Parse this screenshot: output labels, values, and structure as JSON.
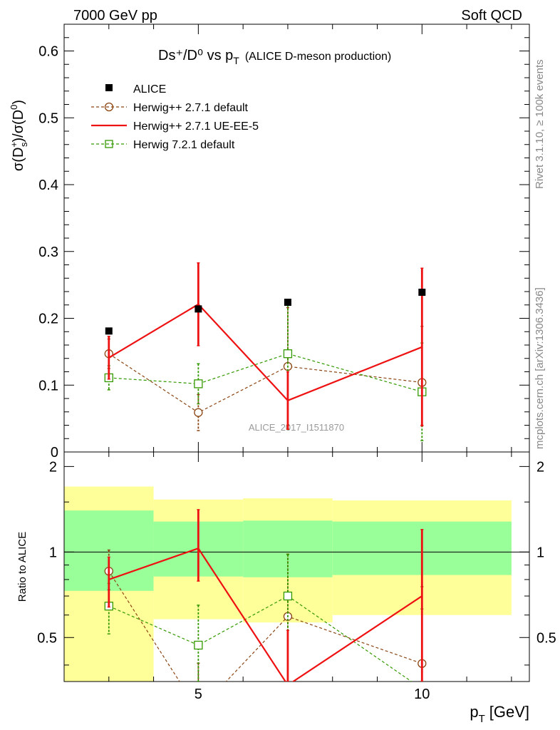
{
  "header": {
    "left": "7000 GeV pp",
    "right": "Soft QCD"
  },
  "side_labels": {
    "rivet": "Rivet 3.1.10, ≥ 100k events",
    "mcplots": "mcplots.cern.ch [arXiv:1306.3436]"
  },
  "watermark": "ALICE_2017_I1511870",
  "title": {
    "main": "Ds⁺/D⁰ vs p",
    "main_sub": "T",
    "extra": "(ALICE D-meson production)"
  },
  "ylabel": {
    "sigma1": "σ(D",
    "sup1": "+",
    "sub1": "s",
    "mid": ")/σ(D",
    "sup2": "0",
    "end": ")"
  },
  "ratio_ylabel": "Ratio to ALICE",
  "xlabel": {
    "main": "p",
    "sub": "T",
    "unit": "[GeV]"
  },
  "legend": {
    "alice": "ALICE",
    "h271": "Herwig++ 2.7.1 default",
    "h271ue": "Herwig++ 2.7.1 UE-EE-5",
    "h721": "Herwig 7.2.1 default"
  },
  "colors": {
    "alice": "#000000",
    "h271": "#8B4513",
    "h271ue": "#EE1111",
    "h721": "#339900",
    "band_inner": "#99FF99",
    "band_outer": "#FFFF99"
  },
  "chart_data": [
    {
      "type": "scatter",
      "title": "Ds⁺/D⁰ vs pT (ALICE D-meson production)",
      "xlabel": "pT [GeV]",
      "ylabel": "σ(Ds+)/σ(D0)",
      "xlim": [
        2,
        12.4
      ],
      "ylim": [
        0,
        0.64
      ],
      "yticks": [
        0,
        0.1,
        0.2,
        0.3,
        0.4,
        0.5,
        0.6
      ],
      "x_bins": [
        [
          2,
          4
        ],
        [
          4,
          6
        ],
        [
          6,
          8
        ],
        [
          8,
          12
        ]
      ],
      "x": [
        3,
        5,
        7,
        10
      ],
      "series": [
        {
          "name": "ALICE",
          "key": "alice",
          "values": [
            0.181,
            0.214,
            0.224,
            0.239
          ]
        },
        {
          "name": "Herwig++ 2.7.1 default",
          "key": "h271",
          "values": [
            0.147,
            0.059,
            0.128,
            0.104
          ],
          "err_lo": [
            0.022,
            0.027,
            0.088,
            0.064
          ],
          "err_hi": [
            0.022,
            0.027,
            0.088,
            0.084
          ]
        },
        {
          "name": "Herwig++ 2.7.1 UE-EE-5",
          "key": "h271ue",
          "values": [
            0.141,
            0.221,
            0.077,
            0.157
          ],
          "err_lo": [
            0.032,
            0.062,
            0.043,
            0.118
          ],
          "err_hi": [
            0.032,
            0.062,
            0.043,
            0.118
          ]
        },
        {
          "name": "Herwig 7.2.1 default",
          "key": "h721",
          "values": [
            0.111,
            0.102,
            0.147,
            0.09
          ],
          "err_lo": [
            0.018,
            0.03,
            0.113,
            0.073
          ],
          "err_hi": [
            0.018,
            0.03,
            0.073,
            0.073
          ]
        }
      ]
    },
    {
      "type": "scatter",
      "ylabel": "Ratio to ALICE",
      "xlim": [
        2,
        12.4
      ],
      "ylim": [
        0.35,
        2.25
      ],
      "yticks": [
        0.5,
        1,
        2
      ],
      "xticks": [
        5,
        10
      ],
      "bands": {
        "bins": [
          [
            2,
            4
          ],
          [
            4,
            6
          ],
          [
            6,
            8
          ],
          [
            8,
            12
          ]
        ],
        "inner_lo": [
          0.73,
          0.82,
          0.815,
          0.83
        ],
        "inner_hi": [
          1.4,
          1.28,
          1.29,
          1.28
        ],
        "outer_lo": [
          0.35,
          0.58,
          0.565,
          0.6
        ],
        "outer_hi": [
          1.7,
          1.53,
          1.545,
          1.52
        ]
      },
      "x": [
        3,
        5,
        7,
        10
      ],
      "series": [
        {
          "name": "Herwig++ 2.7.1 default",
          "key": "h271",
          "values": [
            0.856,
            0.276,
            0.593,
            0.405
          ],
          "err_lo": [
            0.12,
            0.12,
            0.39,
            0.27
          ],
          "err_hi": [
            0.16,
            0.13,
            0.39,
            0.35
          ]
        },
        {
          "name": "Herwig++ 2.7.1 UE-EE-5",
          "key": "h271ue",
          "values": [
            0.8,
            1.03,
            0.34,
            0.7
          ],
          "err_lo": [
            0.16,
            0.24,
            0.19,
            0.5
          ],
          "err_hi": [
            0.16,
            0.38,
            0.19,
            0.5
          ]
        },
        {
          "name": "Herwig 7.2.1 default",
          "key": "h721",
          "values": [
            0.645,
            0.47,
            0.7,
            0.33
          ],
          "err_lo": [
            0.13,
            0.14,
            0.52,
            0.3
          ],
          "err_hi": [
            0.13,
            0.18,
            0.28,
            0.3
          ]
        }
      ]
    }
  ]
}
